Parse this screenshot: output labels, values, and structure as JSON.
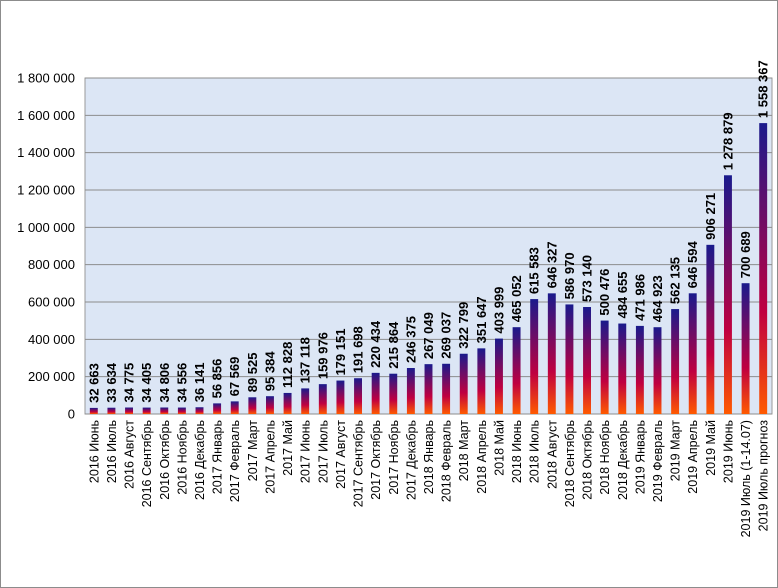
{
  "chart_data": {
    "type": "bar",
    "title": "",
    "xlabel": "",
    "ylabel": "",
    "ylim": [
      0,
      1800000
    ],
    "yticks": [
      0,
      200000,
      400000,
      600000,
      800000,
      1000000,
      1200000,
      1400000,
      1600000,
      1800000
    ],
    "ytick_labels": [
      "0",
      "200 000",
      "400 000",
      "600 000",
      "800 000",
      "1 000 000",
      "1 200 000",
      "1 400 000",
      "1 600 000",
      "1 800 000"
    ],
    "grid": true,
    "legend": "none",
    "colors": {
      "bar_top": "#1a1a8c",
      "bar_mid": "#c00040",
      "bar_bottom": "#ff5a00",
      "plot_bg": "#dce6f5",
      "grid": "#8c8c8c"
    },
    "categories": [
      "2016 Июнь",
      "2016 Июль",
      "2016 Август",
      "2016 Сентябрь",
      "2016 Октябрь",
      "2016 Ноябрь",
      "2016 Декабрь",
      "2017 Январь",
      "2017 Февраль",
      "2017 Март",
      "2017 Апрель",
      "2017 Май",
      "2017 Июнь",
      "2017 Июль",
      "2017 Август",
      "2017 Сентябрь",
      "2017 Октябрь",
      "2017 Ноябрь",
      "2017 Декабрь",
      "2018 Январь",
      "2018 Февраль",
      "2018 Март",
      "2018 Апрель",
      "2018 Май",
      "2018 Июнь",
      "2018 Июль",
      "2018 Август",
      "2018 Сентябрь",
      "2018 Октябрь",
      "2018 Ноябрь",
      "2018 Декабрь",
      "2019 Январь",
      "2019 Февраль",
      "2019 Март",
      "2019 Апрель",
      "2019 Май",
      "2019 Июнь",
      "2019 Июль (1-14.07)",
      "2019 Июль прогноз"
    ],
    "values": [
      32663,
      33634,
      34775,
      34405,
      34806,
      34556,
      36141,
      56856,
      67569,
      89525,
      95384,
      112828,
      137118,
      159976,
      179151,
      191698,
      220434,
      215864,
      246375,
      267049,
      269037,
      322799,
      351647,
      403999,
      465052,
      615583,
      646327,
      586970,
      573140,
      500476,
      484655,
      471986,
      464923,
      562135,
      646594,
      906271,
      1278879,
      700689,
      1558367
    ],
    "value_labels": [
      "32 663",
      "33 634",
      "34 775",
      "34 405",
      "34 806",
      "34 556",
      "36 141",
      "56 856",
      "67 569",
      "89 525",
      "95 384",
      "112 828",
      "137 118",
      "159 976",
      "179 151",
      "191 698",
      "220 434",
      "215 864",
      "246 375",
      "267 049",
      "269 037",
      "322 799",
      "351 647",
      "403 999",
      "465 052",
      "615 583",
      "646 327",
      "586 970",
      "573 140",
      "500 476",
      "484 655",
      "471 986",
      "464 923",
      "562 135",
      "646 594",
      "906 271",
      "1 278 879",
      "700 689",
      "1 558 367"
    ]
  }
}
